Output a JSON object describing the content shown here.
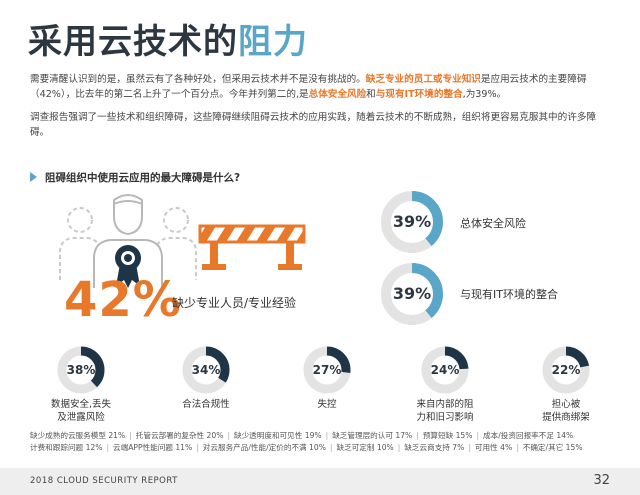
{
  "title": {
    "main": "采用云技术的",
    "highlight": "阻力"
  },
  "paragraph1": {
    "a": "需要清醒认识到的是，虽然云有了各种好处，但采用云技术并不是没有挑战的。",
    "b": "缺乏专业的员工或专业知识",
    "c": "是应用云技术的主要障碍（42%），比去年的第二名上升了一个百分点。今年并列第二的,是",
    "d": "总体安全风险",
    "e": "和",
    "f": "与现有IT环境的整合",
    "g": ",为39%。"
  },
  "paragraph2": "调查报告强调了一些技术和组织障碍，这些障碍继续阻碍云技术的应用实践，随着云技术的不断成熟，组织将更容易克服其中的许多障碍。",
  "subheading": "阻碍组织中使用云应用的最大障碍是什么?",
  "colors": {
    "accent": "#5aa6c9",
    "orange": "#e8782a",
    "dark": "#1e3547",
    "ring": "#e3e3e3"
  },
  "main_stat": {
    "value": "42%",
    "label": "缺少专业人员/专业经验"
  },
  "large_stats": [
    {
      "value": 39,
      "label": "39%",
      "text": "总体安全风险"
    },
    {
      "value": 39,
      "label": "39%",
      "text": "与现有IT环境的整合"
    }
  ],
  "small_stats": [
    {
      "value": 38,
      "label": "38%",
      "text1": "数据安全,丢失",
      "text2": "及泄露风险"
    },
    {
      "value": 34,
      "label": "34%",
      "text1": "合法合规性",
      "text2": ""
    },
    {
      "value": 27,
      "label": "27%",
      "text1": "失控",
      "text2": ""
    },
    {
      "value": 24,
      "label": "24%",
      "text1": "来自内部的阻",
      "text2": "力和旧习影响"
    },
    {
      "value": 22,
      "label": "22%",
      "text1": "担心被",
      "text2": "提供商绑架"
    }
  ],
  "footnote": {
    "row1": [
      "缺少成熟的云服务模型 21%",
      "托管云部署的复杂性 20%",
      "缺少透明度和可见性 19%",
      "缺乏管理层的认可 17%",
      "预算短缺 15%",
      "成本/投资回报率不足 14%"
    ],
    "row2": [
      "计费和跟踪问题 12%",
      "云端APP性能问题 11%",
      "对云服务产品/性能/定价的不满 10%",
      "缺乏可定制 10%",
      "缺乏云商支持 7%",
      "可用性 4%",
      "不确定/其它 15%"
    ]
  },
  "footer": {
    "report": "2018 CLOUD SECURITY REPORT",
    "page": "32"
  }
}
